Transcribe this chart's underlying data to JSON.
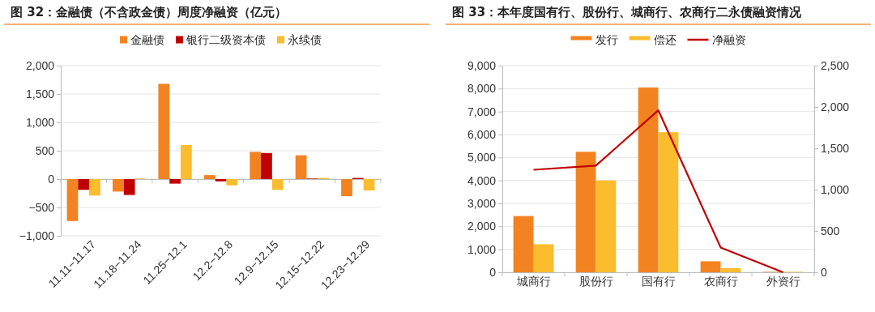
{
  "chart_data": [
    {
      "type": "bar",
      "title": "图 32：金融债（不含政金债）周度净融资（亿元）",
      "categories": [
        "11.11−11.17",
        "11.18−11.24",
        "11.25−12.1",
        "12.2−12.8",
        "12.9−12.15",
        "12.15−12.22",
        "12.23−12.29"
      ],
      "series": [
        {
          "name": "金融债",
          "color": "#f38321",
          "values": [
            -740,
            -220,
            1680,
            70,
            480,
            420,
            -300
          ]
        },
        {
          "name": "银行二级资本债",
          "color": "#c00000",
          "values": [
            -190,
            -280,
            -80,
            -40,
            460,
            10,
            20
          ]
        },
        {
          "name": "永续债",
          "color": "#fbbc2d",
          "values": [
            -290,
            10,
            600,
            -110,
            -190,
            20,
            -200
          ]
        }
      ],
      "ylim": [
        -1000,
        2000
      ],
      "yticks": [
        {
          "value": -1000,
          "label": "−1,000"
        },
        {
          "value": -500,
          "label": "−500"
        },
        0,
        {
          "value": 500,
          "label": "500"
        },
        {
          "value": 1000,
          "label": "1,000"
        },
        {
          "value": 1500,
          "label": "1,500"
        },
        {
          "value": 2000,
          "label": "2,000"
        }
      ],
      "grid": "y",
      "legend": "top"
    },
    {
      "type": "bar",
      "title": "图 33：本年度国有行、股份行、城商行、农商行二永债融资情况",
      "categories": [
        "城商行",
        "股份行",
        "国有行",
        "农商行",
        "外资行"
      ],
      "series": [
        {
          "name": "发行",
          "color": "#f38321",
          "values": [
            2450,
            5250,
            8050,
            480,
            20
          ]
        },
        {
          "name": "偿还",
          "color": "#fbbc2d",
          "values": [
            1220,
            4000,
            6100,
            180,
            20
          ]
        },
        {
          "name": "净融资",
          "type": "line",
          "axis": "y2",
          "color": "#c00000",
          "values": [
            1240,
            1290,
            1960,
            300,
            0
          ]
        }
      ],
      "ylim": [
        0,
        9000
      ],
      "yticks": [
        0,
        {
          "value": 1000,
          "label": "1,000"
        },
        {
          "value": 2000,
          "label": "2,000"
        },
        {
          "value": 3000,
          "label": "3,000"
        },
        {
          "value": 4000,
          "label": "4,000"
        },
        {
          "value": 5000,
          "label": "5,000"
        },
        {
          "value": 6000,
          "label": "6,000"
        },
        {
          "value": 7000,
          "label": "7,000"
        },
        {
          "value": 8000,
          "label": "8,000"
        },
        {
          "value": 9000,
          "label": "9,000"
        }
      ],
      "y2lim": [
        0,
        2500
      ],
      "y2ticks": [
        0,
        {
          "value": 500,
          "label": "500"
        },
        {
          "value": 1000,
          "label": "1,000"
        },
        {
          "value": 1500,
          "label": "1,500"
        },
        {
          "value": 2000,
          "label": "2,000"
        },
        {
          "value": 2500,
          "label": "2,500"
        }
      ],
      "grid": "y",
      "legend": "top"
    }
  ]
}
